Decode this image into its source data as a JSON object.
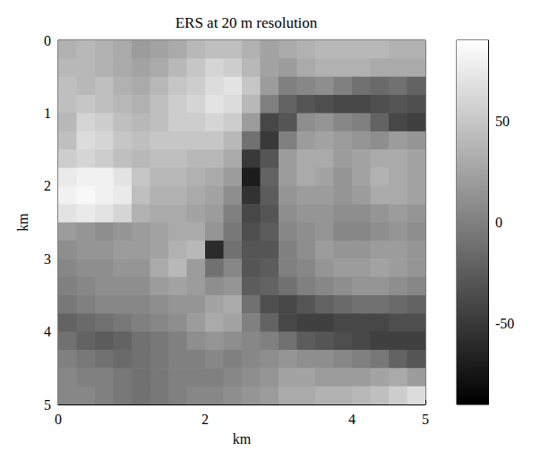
{
  "chart_data": {
    "type": "heatmap",
    "title": "ERS at 20 m resolution",
    "x_label": "km",
    "y_label": "km",
    "xlim": [
      0,
      5
    ],
    "xticks": [
      0,
      2,
      4
    ],
    "ylim": [
      0,
      5
    ],
    "yticks": [
      0,
      1,
      2,
      3,
      4,
      5
    ],
    "x_edges": [
      0,
      0.25,
      0.5,
      0.75,
      1,
      1.25,
      1.5,
      1.75,
      2,
      2.25,
      2.5,
      2.75,
      3,
      3.25,
      3.5,
      3.75,
      4,
      4.25,
      4.5,
      4.75,
      5
    ],
    "y_edges": [
      0,
      0.25,
      0.5,
      0.75,
      1,
      1.25,
      1.5,
      1.75,
      2,
      2.25,
      2.5,
      2.75,
      3,
      3.25,
      3.5,
      3.75,
      4,
      4.25,
      4.5,
      4.75,
      5
    ],
    "cells": [
      [
        35,
        40,
        35,
        30,
        20,
        25,
        30,
        40,
        45,
        45,
        35,
        25,
        30,
        35,
        40,
        40,
        40,
        40,
        35,
        35
      ],
      [
        40,
        40,
        35,
        30,
        25,
        30,
        40,
        50,
        60,
        55,
        40,
        25,
        20,
        30,
        35,
        35,
        35,
        30,
        30,
        30
      ],
      [
        45,
        40,
        45,
        35,
        30,
        40,
        50,
        55,
        65,
        70,
        50,
        20,
        0,
        5,
        10,
        0,
        -10,
        -15,
        -10,
        -20
      ],
      [
        45,
        50,
        45,
        40,
        35,
        45,
        55,
        60,
        70,
        65,
        40,
        0,
        -20,
        -30,
        -35,
        -40,
        -40,
        -35,
        -30,
        -35
      ],
      [
        40,
        60,
        55,
        45,
        40,
        45,
        55,
        55,
        60,
        55,
        20,
        -40,
        -30,
        10,
        15,
        5,
        0,
        -20,
        -40,
        -45
      ],
      [
        45,
        65,
        60,
        50,
        45,
        50,
        50,
        50,
        50,
        40,
        -10,
        -50,
        0,
        20,
        25,
        20,
        15,
        10,
        20,
        15
      ],
      [
        55,
        60,
        55,
        45,
        40,
        45,
        45,
        40,
        40,
        30,
        -50,
        -30,
        20,
        30,
        30,
        20,
        25,
        30,
        30,
        25
      ],
      [
        75,
        80,
        80,
        70,
        50,
        40,
        40,
        35,
        30,
        20,
        -70,
        -20,
        20,
        30,
        25,
        15,
        25,
        35,
        30,
        25
      ],
      [
        80,
        85,
        80,
        75,
        45,
        35,
        35,
        30,
        25,
        10,
        -55,
        -25,
        15,
        20,
        20,
        15,
        20,
        30,
        30,
        25
      ],
      [
        70,
        75,
        70,
        60,
        35,
        30,
        30,
        25,
        20,
        0,
        -40,
        -30,
        10,
        15,
        15,
        10,
        10,
        15,
        20,
        15
      ],
      [
        20,
        15,
        10,
        15,
        20,
        25,
        30,
        30,
        15,
        -5,
        -35,
        -25,
        5,
        10,
        15,
        5,
        5,
        10,
        15,
        10
      ],
      [
        10,
        15,
        15,
        20,
        20,
        25,
        35,
        40,
        -60,
        -10,
        -30,
        -30,
        0,
        10,
        20,
        15,
        15,
        20,
        20,
        15
      ],
      [
        5,
        10,
        10,
        15,
        15,
        30,
        40,
        20,
        -10,
        5,
        -30,
        -25,
        0,
        5,
        15,
        20,
        20,
        25,
        20,
        15
      ],
      [
        0,
        5,
        10,
        10,
        10,
        20,
        25,
        20,
        10,
        15,
        -25,
        -20,
        -10,
        0,
        5,
        10,
        15,
        15,
        10,
        5
      ],
      [
        -5,
        0,
        5,
        5,
        5,
        10,
        15,
        15,
        25,
        30,
        -10,
        -35,
        -40,
        -30,
        -20,
        -15,
        -10,
        -10,
        -15,
        -20
      ],
      [
        -20,
        -15,
        -10,
        -5,
        0,
        5,
        10,
        20,
        30,
        25,
        0,
        -20,
        -40,
        -45,
        -45,
        -40,
        -40,
        -40,
        -35,
        -35
      ],
      [
        -10,
        -20,
        -25,
        -20,
        -10,
        -5,
        0,
        10,
        15,
        10,
        5,
        0,
        -10,
        -25,
        -30,
        -35,
        -40,
        -45,
        -45,
        -45
      ],
      [
        0,
        -5,
        -10,
        -15,
        -10,
        -5,
        0,
        0,
        5,
        0,
        5,
        10,
        15,
        10,
        10,
        5,
        0,
        -5,
        -20,
        -30
      ],
      [
        5,
        0,
        0,
        -5,
        -10,
        -5,
        0,
        0,
        0,
        5,
        10,
        15,
        25,
        25,
        20,
        20,
        20,
        25,
        30,
        20
      ],
      [
        5,
        5,
        0,
        -5,
        -10,
        -5,
        0,
        5,
        5,
        10,
        15,
        20,
        30,
        30,
        35,
        35,
        40,
        45,
        55,
        65
      ]
    ],
    "colorbar_lim": [
      -90,
      90
    ],
    "colorbar_ticks": [
      -50,
      0,
      50
    ]
  }
}
